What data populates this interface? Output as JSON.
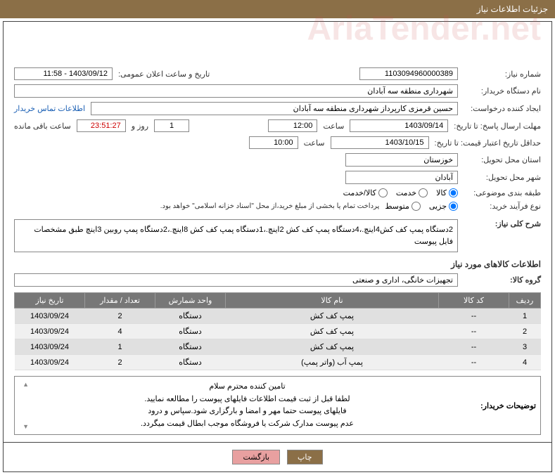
{
  "header": {
    "title": "جزئیات اطلاعات نیاز"
  },
  "form": {
    "need_no_label": "شماره نیاز:",
    "need_no": "1103094960000389",
    "announce_label": "تاریخ و ساعت اعلان عمومی:",
    "announce_val": "1403/09/12 - 11:58",
    "buyer_org_label": "نام دستگاه خریدار:",
    "buyer_org": "شهرداری منطقه سه آبادان",
    "requester_label": "ایجاد کننده درخواست:",
    "requester": "حسین قرمزی کارپرداز شهرداری منطقه سه آبادان",
    "contact_link": "اطلاعات تماس خریدار",
    "deadline_send_label": "مهلت ارسال پاسخ: تا تاریخ:",
    "deadline_send_date": "1403/09/14",
    "time_label": "ساعت",
    "deadline_send_time": "12:00",
    "days_val": "1",
    "days_and": "روز و",
    "countdown": "23:51:27",
    "remaining": "ساعت باقی مانده",
    "min_valid_label": "حداقل تاریخ اعتبار قیمت: تا تاریخ:",
    "min_valid_date": "1403/10/15",
    "min_valid_time": "10:00",
    "province_label": "استان محل تحویل:",
    "province": "خوزستان",
    "city_label": "شهر محل تحویل:",
    "city": "آبادان",
    "category_label": "طبقه بندی موضوعی:",
    "cat_opts": {
      "goods": "کالا",
      "service": "خدمت",
      "goods_service": "کالا/خدمت"
    },
    "process_label": "نوع فرآیند خرید:",
    "proc_opts": {
      "partial": "جزیی",
      "medium": "متوسط"
    },
    "payment_note": "پرداخت تمام یا بخشی از مبلغ خرید،از محل \"اسناد خزانه اسلامی\" خواهد بود.",
    "summary_label": "شرح کلی نیاز:",
    "summary_text": "2دستگاه پمپ کف کش4اینچ.،4دستگاه پمپ کف کش 2اینچ.،1دستگاه پمپ کف کش 8اینچ.،2دستگاه پمپ روبین 3اینچ طبق مشخصات فایل پیوست",
    "goods_info_title": "اطلاعات کالاهای مورد نیاز",
    "group_label": "گروه کالا:",
    "group_val": "تجهیزات خانگی، اداری و صنعتی",
    "buyer_notes_label": "توضیحات خریدار:",
    "buyer_notes_l1": "تامین کننده محترم سلام",
    "buyer_notes_l2": "لطفا قبل از ثبت قیمت اطلاعات فایلهای پیوست را مطالعه نمایید.",
    "buyer_notes_l3": "فایلهای پیوست حتما مهر و امضا و بارگزاری شود.سپاس و درود",
    "buyer_notes_l4": "عدم پیوست مدارک شرکت یا فروشگاه موجب ابطال قیمت میگردد."
  },
  "table": {
    "headers": {
      "row": "ردیف",
      "code": "کد کالا",
      "name": "نام کالا",
      "unit": "واحد شمارش",
      "qty": "تعداد / مقدار",
      "need_date": "تاریخ نیاز"
    },
    "rows": [
      {
        "row": "1",
        "code": "--",
        "name": "پمپ کف کش",
        "unit": "دستگاه",
        "qty": "2",
        "need_date": "1403/09/24"
      },
      {
        "row": "2",
        "code": "--",
        "name": "پمپ کف کش",
        "unit": "دستگاه",
        "qty": "4",
        "need_date": "1403/09/24"
      },
      {
        "row": "3",
        "code": "--",
        "name": "پمپ کف کش",
        "unit": "دستگاه",
        "qty": "1",
        "need_date": "1403/09/24"
      },
      {
        "row": "4",
        "code": "--",
        "name": "پمپ آب (واتر پمپ)",
        "unit": "دستگاه",
        "qty": "2",
        "need_date": "1403/09/24"
      }
    ]
  },
  "buttons": {
    "print": "چاپ",
    "back": "بازگشت"
  },
  "watermark": "AriaTender.net",
  "style": {
    "header_bg": "#8b6f47",
    "table_header_bg": "#777777",
    "btn_back_bg": "#e8a0a0"
  }
}
